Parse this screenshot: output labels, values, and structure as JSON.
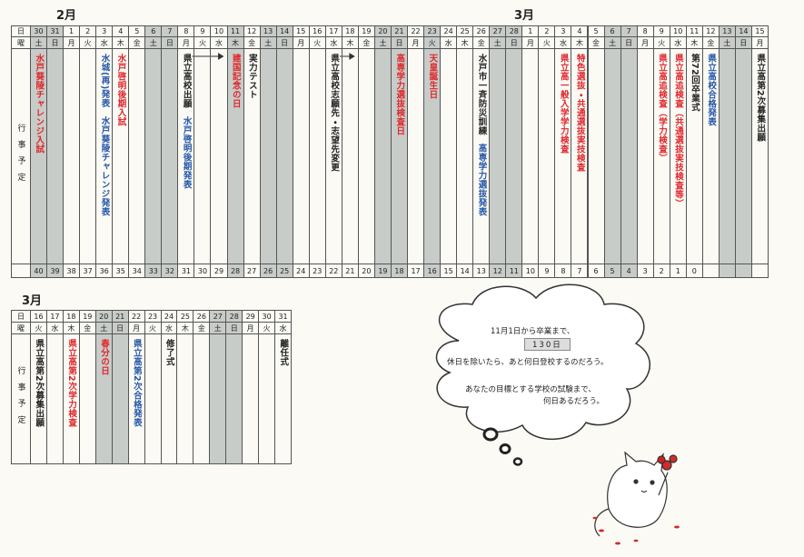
{
  "top_calendar": {
    "month_labels": [
      "2月",
      "3月"
    ],
    "row_labels": {
      "day": "日",
      "weekday": "曜",
      "events": "行事予定"
    },
    "days": [
      {
        "day": 30,
        "weekday": "土",
        "shaded": true,
        "count": 40,
        "events": [
          {
            "text": "水戸葵陵チャレンジ入試",
            "color": "#e0262c"
          }
        ]
      },
      {
        "day": 31,
        "weekday": "日",
        "shaded": true,
        "count": 39,
        "events": []
      },
      {
        "day": 1,
        "weekday": "月",
        "shaded": false,
        "count": 38,
        "events": []
      },
      {
        "day": 2,
        "weekday": "火",
        "shaded": false,
        "count": 37,
        "events": []
      },
      {
        "day": 3,
        "weekday": "水",
        "shaded": false,
        "count": 36,
        "events": [
          {
            "text": "水城(再)発表",
            "color": "#2356a8"
          },
          {
            "text": "水戸葵陵チャレンジ発表",
            "color": "#2356a8"
          }
        ]
      },
      {
        "day": 4,
        "weekday": "木",
        "shaded": false,
        "count": 35,
        "events": [
          {
            "text": "水戸啓明後期入試",
            "color": "#e0262c"
          }
        ]
      },
      {
        "day": 5,
        "weekday": "金",
        "shaded": false,
        "count": 34,
        "events": []
      },
      {
        "day": 6,
        "weekday": "土",
        "shaded": true,
        "count": 33,
        "events": []
      },
      {
        "day": 7,
        "weekday": "日",
        "shaded": true,
        "count": 32,
        "events": []
      },
      {
        "day": 8,
        "weekday": "月",
        "shaded": false,
        "count": 31,
        "events": [
          {
            "text": "県立高校出願",
            "color": "#222222"
          },
          {
            "text": "水戸啓明後期発表",
            "color": "#2356a8"
          }
        ]
      },
      {
        "day": 9,
        "weekday": "火",
        "shaded": false,
        "count": 30,
        "events": []
      },
      {
        "day": 10,
        "weekday": "水",
        "shaded": false,
        "count": 29,
        "events": []
      },
      {
        "day": 11,
        "weekday": "木",
        "shaded": true,
        "count": 28,
        "events": [
          {
            "text": "建国記念の日",
            "color": "#e0262c"
          }
        ]
      },
      {
        "day": 12,
        "weekday": "金",
        "shaded": false,
        "count": 27,
        "events": [
          {
            "text": "実力テスト",
            "color": "#222222"
          }
        ]
      },
      {
        "day": 13,
        "weekday": "土",
        "shaded": true,
        "count": 26,
        "events": []
      },
      {
        "day": 14,
        "weekday": "日",
        "shaded": true,
        "count": 25,
        "events": []
      },
      {
        "day": 15,
        "weekday": "月",
        "shaded": false,
        "count": 24,
        "events": []
      },
      {
        "day": 16,
        "weekday": "火",
        "shaded": false,
        "count": 23,
        "events": []
      },
      {
        "day": 17,
        "weekday": "水",
        "shaded": false,
        "count": 22,
        "events": [
          {
            "text": "県立高校志願先・志望先変更",
            "color": "#222222"
          }
        ]
      },
      {
        "day": 18,
        "weekday": "木",
        "shaded": false,
        "count": 21,
        "events": []
      },
      {
        "day": 19,
        "weekday": "金",
        "shaded": false,
        "count": 20,
        "events": []
      },
      {
        "day": 20,
        "weekday": "土",
        "shaded": true,
        "count": 19,
        "events": []
      },
      {
        "day": 21,
        "weekday": "日",
        "shaded": true,
        "count": 18,
        "events": [
          {
            "text": "高専学力選抜検査日",
            "color": "#e0262c"
          }
        ]
      },
      {
        "day": 22,
        "weekday": "月",
        "shaded": false,
        "count": 17,
        "events": []
      },
      {
        "day": 23,
        "weekday": "火",
        "shaded": true,
        "count": 16,
        "events": [
          {
            "text": "天皇誕生日",
            "color": "#e0262c"
          }
        ]
      },
      {
        "day": 24,
        "weekday": "水",
        "shaded": false,
        "count": 15,
        "events": []
      },
      {
        "day": 25,
        "weekday": "木",
        "shaded": false,
        "count": 14,
        "events": []
      },
      {
        "day": 26,
        "weekday": "金",
        "shaded": false,
        "count": 13,
        "events": [
          {
            "text": "水戸市一斉防災訓練",
            "color": "#222222"
          },
          {
            "text": "高専学力選抜発表",
            "color": "#2356a8"
          }
        ]
      },
      {
        "day": 27,
        "weekday": "土",
        "shaded": true,
        "count": 12,
        "events": []
      },
      {
        "day": 28,
        "weekday": "日",
        "shaded": true,
        "count": 11,
        "events": []
      },
      {
        "day": 1,
        "weekday": "月",
        "shaded": false,
        "count": 10,
        "events": []
      },
      {
        "day": 2,
        "weekday": "火",
        "shaded": false,
        "count": 9,
        "events": []
      },
      {
        "day": 3,
        "weekday": "水",
        "shaded": false,
        "count": 8,
        "events": [
          {
            "text": "県立高一般入学学力検査",
            "color": "#e0262c"
          }
        ]
      },
      {
        "day": 4,
        "weekday": "木",
        "shaded": false,
        "count": 7,
        "events": [
          {
            "text": "特色選抜・共通選抜実技検査",
            "color": "#e0262c"
          }
        ]
      },
      {
        "day": 5,
        "weekday": "金",
        "shaded": false,
        "count": 6,
        "events": []
      },
      {
        "day": 6,
        "weekday": "土",
        "shaded": true,
        "count": 5,
        "events": []
      },
      {
        "day": 7,
        "weekday": "日",
        "shaded": true,
        "count": 4,
        "events": []
      },
      {
        "day": 8,
        "weekday": "月",
        "shaded": false,
        "count": 3,
        "events": []
      },
      {
        "day": 9,
        "weekday": "火",
        "shaded": false,
        "count": 2,
        "events": [
          {
            "text": "県立高追検査（学力検査）",
            "color": "#e0262c"
          }
        ]
      },
      {
        "day": 10,
        "weekday": "水",
        "shaded": false,
        "count": 1,
        "events": [
          {
            "text": "県立高追検査（共通選抜実技検査等）",
            "color": "#e0262c"
          }
        ]
      },
      {
        "day": 11,
        "weekday": "木",
        "shaded": false,
        "count": 0,
        "events": [
          {
            "text": "第72回卒業式",
            "color": "#222222"
          }
        ]
      },
      {
        "day": 12,
        "weekday": "金",
        "shaded": false,
        "count": null,
        "events": [
          {
            "text": "県立高校合格発表",
            "color": "#2356a8"
          }
        ]
      },
      {
        "day": 13,
        "weekday": "土",
        "shaded": true,
        "count": null,
        "events": []
      },
      {
        "day": 14,
        "weekday": "日",
        "shaded": true,
        "count": null,
        "events": []
      },
      {
        "day": 15,
        "weekday": "月",
        "shaded": false,
        "count": null,
        "events": [
          {
            "text": "県立高第2次募集出願",
            "color": "#222222"
          }
        ]
      }
    ]
  },
  "bottom_calendar": {
    "month_label": "3月",
    "row_labels": {
      "day": "日",
      "weekday": "曜",
      "events": "行事予定"
    },
    "days": [
      {
        "day": 16,
        "weekday": "火",
        "shaded": false,
        "events": [
          {
            "text": "県立高第2次募集出願",
            "color": "#222222"
          }
        ]
      },
      {
        "day": 17,
        "weekday": "水",
        "shaded": false,
        "events": []
      },
      {
        "day": 18,
        "weekday": "木",
        "shaded": false,
        "events": [
          {
            "text": "県立高第2次学力検査",
            "color": "#e0262c"
          }
        ]
      },
      {
        "day": 19,
        "weekday": "金",
        "shaded": false,
        "events": []
      },
      {
        "day": 20,
        "weekday": "土",
        "shaded": true,
        "events": [
          {
            "text": "春分の日",
            "color": "#e0262c"
          }
        ]
      },
      {
        "day": 21,
        "weekday": "日",
        "shaded": true,
        "events": []
      },
      {
        "day": 22,
        "weekday": "月",
        "shaded": false,
        "events": [
          {
            "text": "県立高第2次合格発表",
            "color": "#2356a8"
          }
        ]
      },
      {
        "day": 23,
        "weekday": "火",
        "shaded": false,
        "events": []
      },
      {
        "day": 24,
        "weekday": "水",
        "shaded": false,
        "events": [
          {
            "text": "修了式",
            "color": "#222222"
          }
        ]
      },
      {
        "day": 25,
        "weekday": "木",
        "shaded": false,
        "events": []
      },
      {
        "day": 26,
        "weekday": "金",
        "shaded": false,
        "events": []
      },
      {
        "day": 27,
        "weekday": "土",
        "shaded": true,
        "events": []
      },
      {
        "day": 28,
        "weekday": "日",
        "shaded": true,
        "events": []
      },
      {
        "day": 29,
        "weekday": "月",
        "shaded": false,
        "events": []
      },
      {
        "day": 30,
        "weekday": "火",
        "shaded": false,
        "events": []
      },
      {
        "day": 31,
        "weekday": "水",
        "shaded": false,
        "events": [
          {
            "text": "離任式",
            "color": "#222222"
          }
        ]
      }
    ]
  },
  "cloud": {
    "lines": [
      "11月1日から卒業まで、",
      "130日",
      "休日を除いたら、あと何日登校するのだろう。",
      "あなたの目標とする学校の試験まで、",
      "何日あるだろう。"
    ]
  }
}
